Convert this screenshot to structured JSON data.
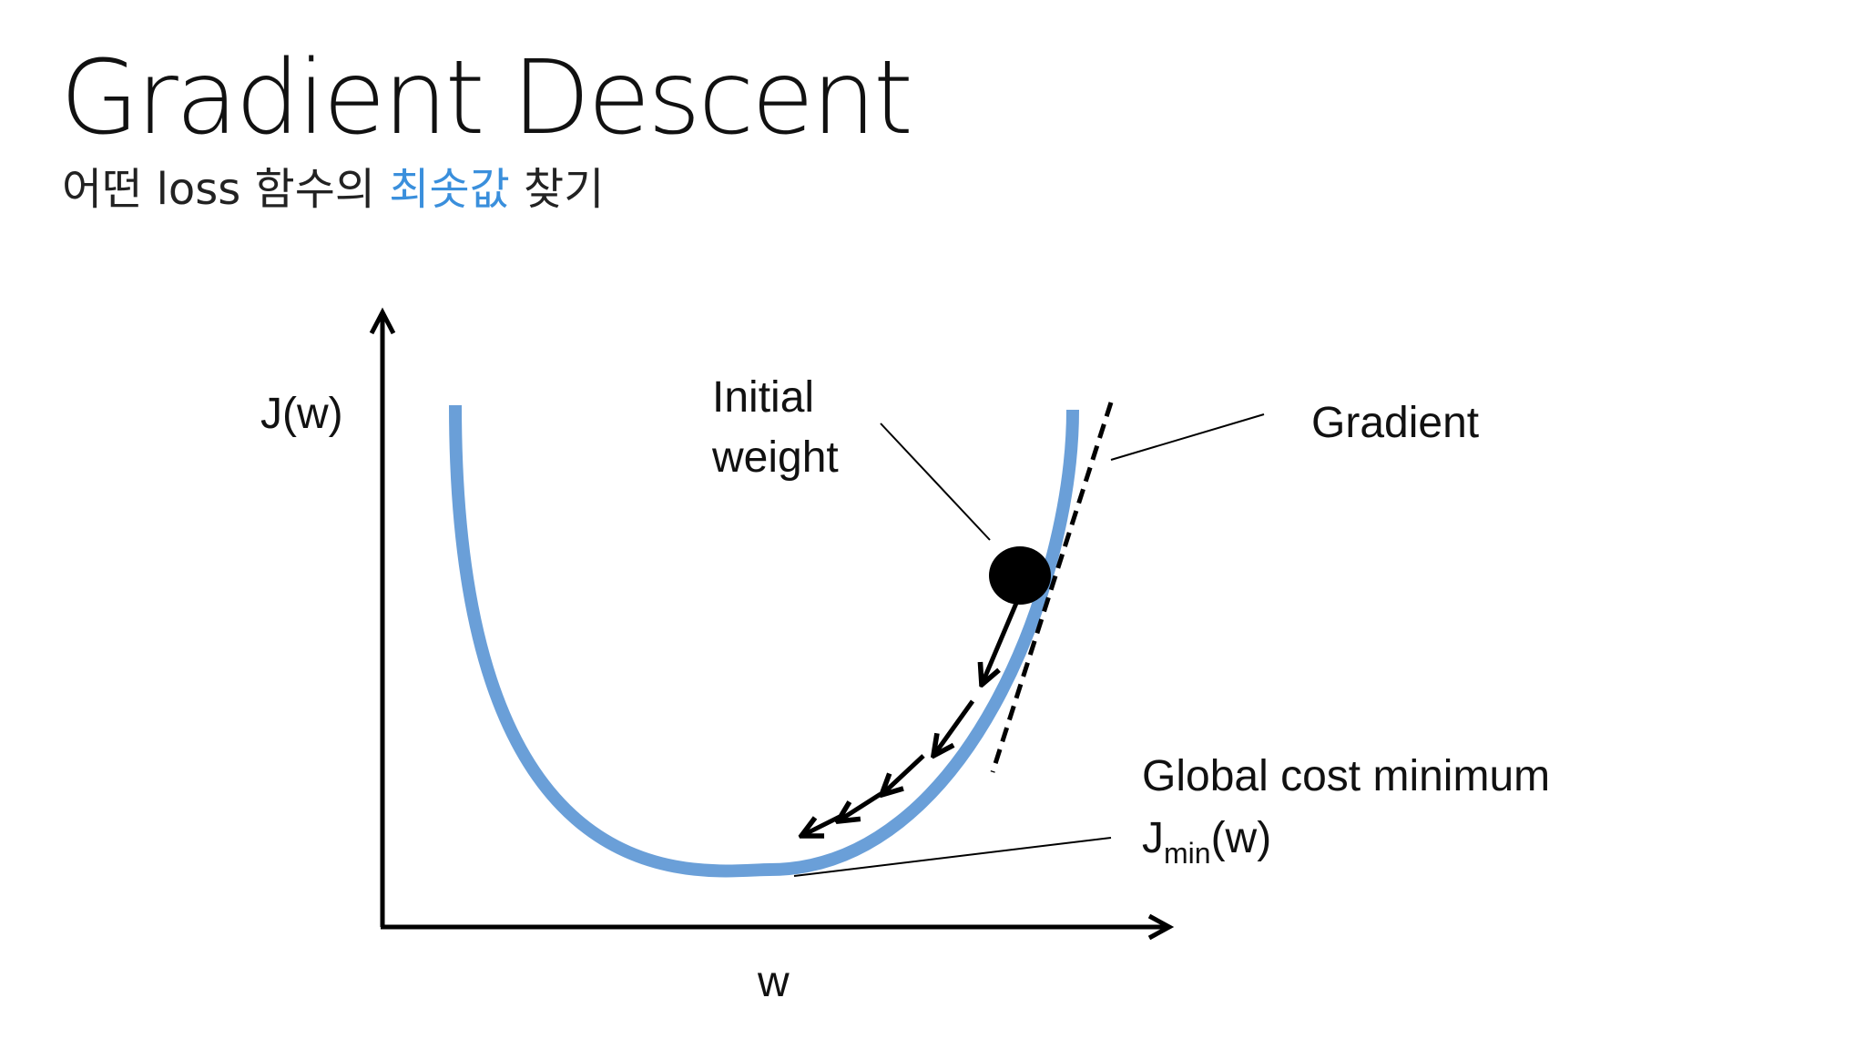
{
  "title": "Gradient Descent",
  "subtitle": {
    "before": "어떤 loss 함수의 ",
    "highlight": "최솟값",
    "after": " 찾기"
  },
  "diagram": {
    "y_axis_label": "J(w)",
    "x_axis_label": "w",
    "initial_weight_line1": "Initial",
    "initial_weight_line2": "weight",
    "gradient_label": "Gradient",
    "global_min_label": "Global cost minimum",
    "jmin_main": "J",
    "jmin_sub": "min",
    "jmin_tail": "(w)"
  },
  "colors": {
    "curve": "#6a9fd8",
    "highlight_text": "#3a8fdc",
    "ink": "#000000"
  }
}
